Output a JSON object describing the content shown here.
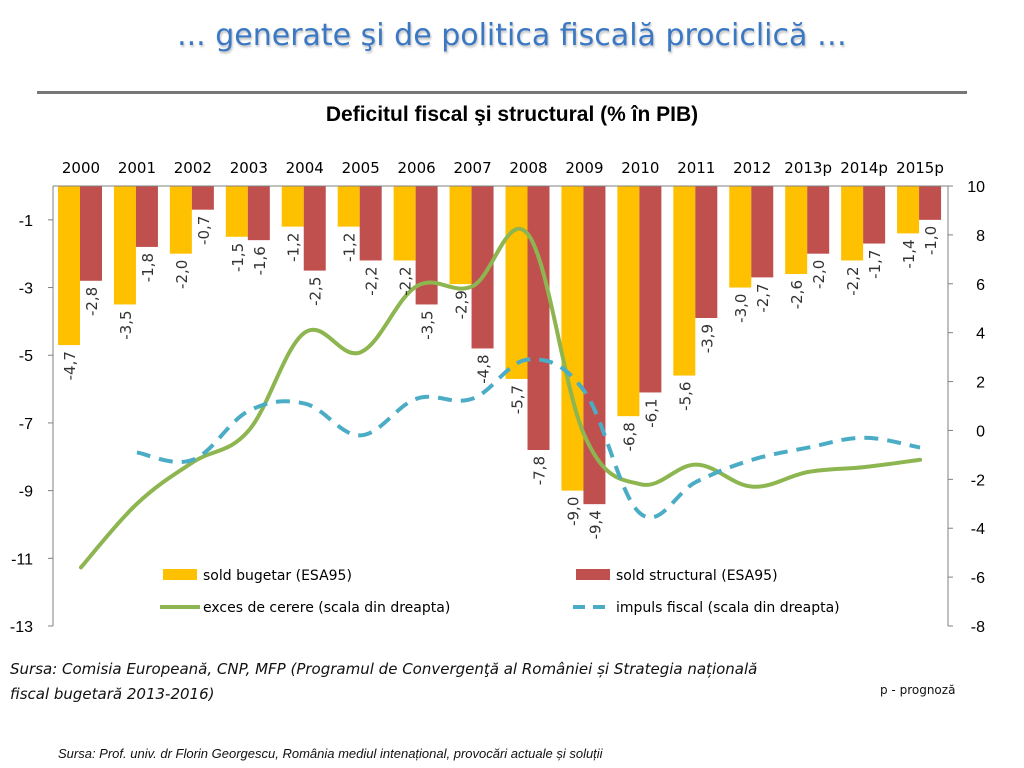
{
  "slide": {
    "title": "... generate şi de politica fiscală prociclică …",
    "source_line_1": "Sursa: Comisia Europeană, CNP, MFP (Programul de Convergenţă al României și Strategia națională",
    "source_line_2": "fiscal bugetară  2013-2016)",
    "note": "p - prognoză",
    "source_bottom": "Sursa: Prof. univ. dr Florin Georgescu, România mediul intenațional, provocări actuale și soluții"
  },
  "chart_data": {
    "type": "bar",
    "title": "Deficitul fiscal şi structural (% în PIB)",
    "categories": [
      "2000",
      "2001",
      "2002",
      "2003",
      "2004",
      "2005",
      "2006",
      "2007",
      "2008",
      "2009",
      "2010",
      "2011",
      "2012",
      "2013p",
      "2014p",
      "2015p"
    ],
    "y_left": {
      "range": [
        -13,
        0
      ],
      "ticks": [
        "-1",
        "-3",
        "-5",
        "-7",
        "-9",
        "-11",
        "-13"
      ],
      "tick_values": [
        -1,
        -3,
        -5,
        -7,
        -9,
        -11,
        -13
      ]
    },
    "y_right": {
      "range": [
        -8,
        10
      ],
      "ticks": [
        "10",
        "8",
        "6",
        "4",
        "2",
        "0",
        "-2",
        "-4",
        "-6",
        "-8"
      ],
      "tick_values": [
        10,
        8,
        6,
        4,
        2,
        0,
        -2,
        -4,
        -6,
        -8
      ]
    },
    "series": [
      {
        "name": "sold bugetar (ESA95)",
        "type": "bar",
        "axis": "left",
        "color": "#ffc000",
        "values": [
          -4.7,
          -3.5,
          -2.0,
          -1.5,
          -1.2,
          -1.2,
          -2.2,
          -2.9,
          -5.7,
          -9.0,
          -6.8,
          -5.6,
          -3.0,
          -2.6,
          -2.2,
          -1.4
        ],
        "labels": [
          "-4,7",
          "-3,5",
          "-2,0",
          "-1,5",
          "-1,2",
          "-1,2",
          "-2,2",
          "-2,9",
          "-5,7",
          "-9,0",
          "-6,8",
          "-5,6",
          "-3,0",
          "-2,6",
          "-2,2",
          "-1,4"
        ]
      },
      {
        "name": "sold structural (ESA95)",
        "type": "bar",
        "axis": "left",
        "color": "#c0504d",
        "values": [
          -2.8,
          -1.8,
          -0.7,
          -1.6,
          -2.5,
          -2.2,
          -3.5,
          -4.8,
          -7.8,
          -9.4,
          -6.1,
          -3.9,
          -2.7,
          -2.0,
          -1.7,
          -1.0
        ],
        "labels": [
          "-2,8",
          "-1,8",
          "-0,7",
          "-1,6",
          "-2,5",
          "-2,2",
          "-3,5",
          "-4,8",
          "-7,8",
          "-9,4",
          "-6,1",
          "-3,9",
          "-2,7",
          "-2,0",
          "-1,7",
          "-1,0"
        ]
      },
      {
        "name": "exces de cerere (scala din dreapta)",
        "type": "line",
        "axis": "right",
        "color": "#8db550",
        "values": [
          -5.6,
          -3.0,
          -1.3,
          0.0,
          4.0,
          3.2,
          5.9,
          5.9,
          8.0,
          -0.2,
          -2.2,
          -1.4,
          -2.3,
          -1.7,
          -1.5,
          -1.2
        ]
      },
      {
        "name": "impuls fiscal (scala din dreapta)",
        "type": "line",
        "axis": "right",
        "color": "#4bacc6",
        "dashed": true,
        "values": [
          null,
          -0.9,
          -1.2,
          0.8,
          1.1,
          -0.2,
          1.3,
          1.3,
          2.9,
          1.6,
          -3.4,
          -2.1,
          -1.2,
          -0.7,
          -0.3,
          -0.7
        ]
      }
    ],
    "legend_position": "bottom-inside",
    "grid": false
  }
}
